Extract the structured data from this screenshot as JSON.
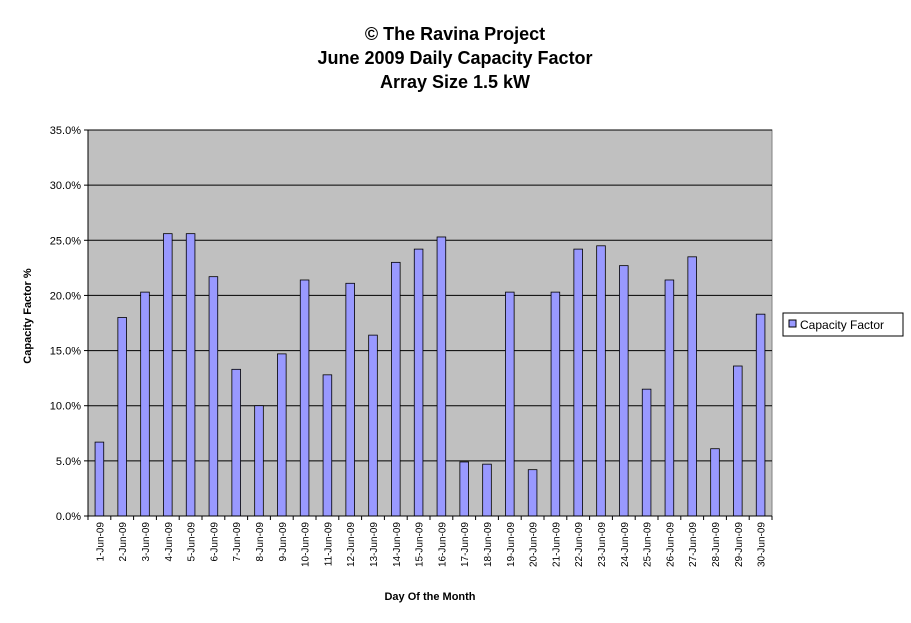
{
  "chart_data": {
    "type": "bar",
    "title": [
      "© The Ravina Project",
      "June 2009 Daily Capacity Factor",
      "Array Size 1.5 kW"
    ],
    "xlabel": "Day Of the Month",
    "ylabel": "Capacity Factor %",
    "ylim": [
      0,
      35
    ],
    "yticks": [
      "0.0%",
      "5.0%",
      "10.0%",
      "15.0%",
      "20.0%",
      "25.0%",
      "30.0%",
      "35.0%"
    ],
    "grid": true,
    "legend_position": "right",
    "categories": [
      "1-Jun-09",
      "2-Jun-09",
      "3-Jun-09",
      "4-Jun-09",
      "5-Jun-09",
      "6-Jun-09",
      "7-Jun-09",
      "8-Jun-09",
      "9-Jun-09",
      "10-Jun-09",
      "11-Jun-09",
      "12-Jun-09",
      "13-Jun-09",
      "14-Jun-09",
      "15-Jun-09",
      "16-Jun-09",
      "17-Jun-09",
      "18-Jun-09",
      "19-Jun-09",
      "20-Jun-09",
      "21-Jun-09",
      "22-Jun-09",
      "23-Jun-09",
      "24-Jun-09",
      "25-Jun-09",
      "26-Jun-09",
      "27-Jun-09",
      "28-Jun-09",
      "29-Jun-09",
      "30-Jun-09"
    ],
    "series": [
      {
        "name": "Capacity Factor",
        "color": "#9999ff",
        "values": [
          6.7,
          18.0,
          20.3,
          25.6,
          25.6,
          21.7,
          13.3,
          10.0,
          14.7,
          21.4,
          12.8,
          21.1,
          16.4,
          23.0,
          24.2,
          25.3,
          4.9,
          4.7,
          20.3,
          4.2,
          20.3,
          24.2,
          24.5,
          22.7,
          11.5,
          21.4,
          23.5,
          6.1,
          13.6,
          18.3
        ]
      }
    ],
    "plot_background": "#c0c0c0"
  }
}
